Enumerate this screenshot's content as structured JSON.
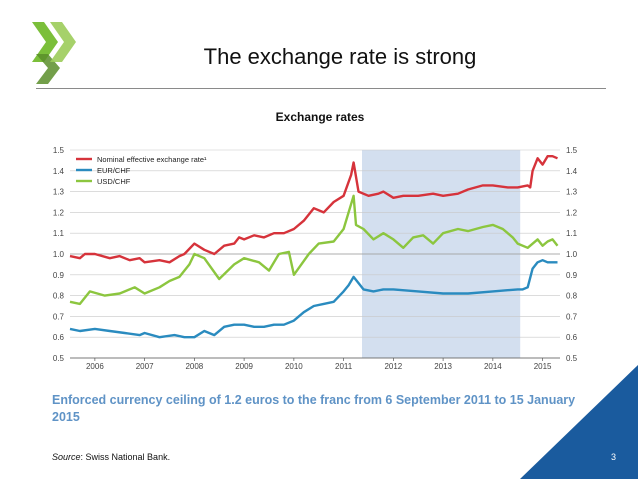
{
  "slide": {
    "title": "The exchange rate is strong",
    "caption": "Enforced currency ceiling  of 1.2 euros to the franc from 6 September 2011 to 15 January 2015",
    "source_label": "Source",
    "source_text": ": Swiss National Bank.",
    "page_number": "3",
    "colors": {
      "accent_blue": "#5f93c6",
      "corner_blue": "#1a5b9e",
      "logo_green": "#7bbf3a"
    }
  },
  "chart_data": {
    "type": "line",
    "title": "Exchange rates",
    "xlabel": "",
    "ylabel": "",
    "xlim": [
      2005.5,
      2015.35
    ],
    "ylim": [
      0.5,
      1.5
    ],
    "y_ticks": [
      "1.5",
      "1.4",
      "1.3",
      "1.2",
      "1.1",
      "1.0",
      "0.9",
      "0.8",
      "0.7",
      "0.6",
      "0.5"
    ],
    "y_tick_values": [
      1.5,
      1.4,
      1.3,
      1.2,
      1.1,
      1.0,
      0.9,
      0.8,
      0.7,
      0.6,
      0.5
    ],
    "x_tick_labels": [
      "2006",
      "2007",
      "2008",
      "2009",
      "2010",
      "2011",
      "2012",
      "2013",
      "2014",
      "2015"
    ],
    "x_tick_values": [
      2006,
      2007,
      2008,
      2009,
      2010,
      2011,
      2012,
      2013,
      2014,
      2015
    ],
    "shaded_period": [
      2011.37,
      2014.55
    ],
    "shaded_color": "#d3dfef",
    "series": [
      {
        "name": "Nominal effective exchange rate¹",
        "color": "#d6333b",
        "x": [
          2005.5,
          2005.7,
          2005.8,
          2006.0,
          2006.3,
          2006.5,
          2006.7,
          2006.9,
          2007.0,
          2007.3,
          2007.5,
          2007.7,
          2007.8,
          2008.0,
          2008.2,
          2008.4,
          2008.6,
          2008.8,
          2008.9,
          2009.0,
          2009.2,
          2009.4,
          2009.6,
          2009.8,
          2010.0,
          2010.2,
          2010.4,
          2010.6,
          2010.8,
          2011.0,
          2011.15,
          2011.2,
          2011.3,
          2011.5,
          2011.7,
          2011.8,
          2012.0,
          2012.2,
          2012.5,
          2012.8,
          2013.0,
          2013.3,
          2013.5,
          2013.8,
          2014.0,
          2014.3,
          2014.5,
          2014.7,
          2014.75,
          2014.8,
          2014.9,
          2015.0,
          2015.1,
          2015.2,
          2015.3
        ],
        "values": [
          0.99,
          0.98,
          1.0,
          1.0,
          0.98,
          0.99,
          0.97,
          0.98,
          0.96,
          0.97,
          0.96,
          0.99,
          1.0,
          1.05,
          1.02,
          1.0,
          1.04,
          1.05,
          1.08,
          1.07,
          1.09,
          1.08,
          1.1,
          1.1,
          1.12,
          1.16,
          1.22,
          1.2,
          1.25,
          1.28,
          1.38,
          1.44,
          1.3,
          1.28,
          1.29,
          1.3,
          1.27,
          1.28,
          1.28,
          1.29,
          1.28,
          1.29,
          1.31,
          1.33,
          1.33,
          1.32,
          1.32,
          1.33,
          1.32,
          1.4,
          1.46,
          1.43,
          1.47,
          1.47,
          1.46
        ]
      },
      {
        "name": "EUR/CHF",
        "color": "#2a8bbf",
        "x": [
          2005.5,
          2005.7,
          2006.0,
          2006.3,
          2006.6,
          2006.9,
          2007.0,
          2007.3,
          2007.6,
          2007.8,
          2008.0,
          2008.2,
          2008.4,
          2008.6,
          2008.8,
          2009.0,
          2009.2,
          2009.4,
          2009.6,
          2009.8,
          2010.0,
          2010.2,
          2010.4,
          2010.6,
          2010.8,
          2011.0,
          2011.1,
          2011.2,
          2011.4,
          2011.6,
          2011.8,
          2012.0,
          2012.5,
          2013.0,
          2013.5,
          2014.0,
          2014.5,
          2014.6,
          2014.7,
          2014.8,
          2014.9,
          2015.0,
          2015.1,
          2015.2,
          2015.3
        ],
        "values": [
          0.64,
          0.63,
          0.64,
          0.63,
          0.62,
          0.61,
          0.62,
          0.6,
          0.61,
          0.6,
          0.6,
          0.63,
          0.61,
          0.65,
          0.66,
          0.66,
          0.65,
          0.65,
          0.66,
          0.66,
          0.68,
          0.72,
          0.75,
          0.76,
          0.77,
          0.82,
          0.85,
          0.89,
          0.83,
          0.82,
          0.83,
          0.83,
          0.82,
          0.81,
          0.81,
          0.82,
          0.83,
          0.83,
          0.84,
          0.93,
          0.96,
          0.97,
          0.96,
          0.96,
          0.96
        ]
      },
      {
        "name": "USD/CHF",
        "color": "#8cc63f",
        "x": [
          2005.5,
          2005.7,
          2005.9,
          2006.2,
          2006.5,
          2006.8,
          2007.0,
          2007.3,
          2007.5,
          2007.7,
          2007.9,
          2008.0,
          2008.2,
          2008.5,
          2008.8,
          2009.0,
          2009.3,
          2009.5,
          2009.7,
          2009.9,
          2010.0,
          2010.3,
          2010.5,
          2010.8,
          2011.0,
          2011.2,
          2011.25,
          2011.4,
          2011.6,
          2011.8,
          2012.0,
          2012.2,
          2012.4,
          2012.6,
          2012.8,
          2013.0,
          2013.3,
          2013.5,
          2013.8,
          2014.0,
          2014.2,
          2014.4,
          2014.5,
          2014.7,
          2014.9,
          2015.0,
          2015.1,
          2015.2,
          2015.3
        ],
        "values": [
          0.77,
          0.76,
          0.82,
          0.8,
          0.81,
          0.84,
          0.81,
          0.84,
          0.87,
          0.89,
          0.95,
          1.0,
          0.98,
          0.88,
          0.95,
          0.98,
          0.96,
          0.92,
          1.0,
          1.01,
          0.9,
          1.0,
          1.05,
          1.06,
          1.12,
          1.28,
          1.14,
          1.12,
          1.07,
          1.1,
          1.07,
          1.03,
          1.08,
          1.09,
          1.05,
          1.1,
          1.12,
          1.11,
          1.13,
          1.14,
          1.12,
          1.08,
          1.05,
          1.03,
          1.07,
          1.04,
          1.06,
          1.07,
          1.04
        ]
      }
    ]
  }
}
